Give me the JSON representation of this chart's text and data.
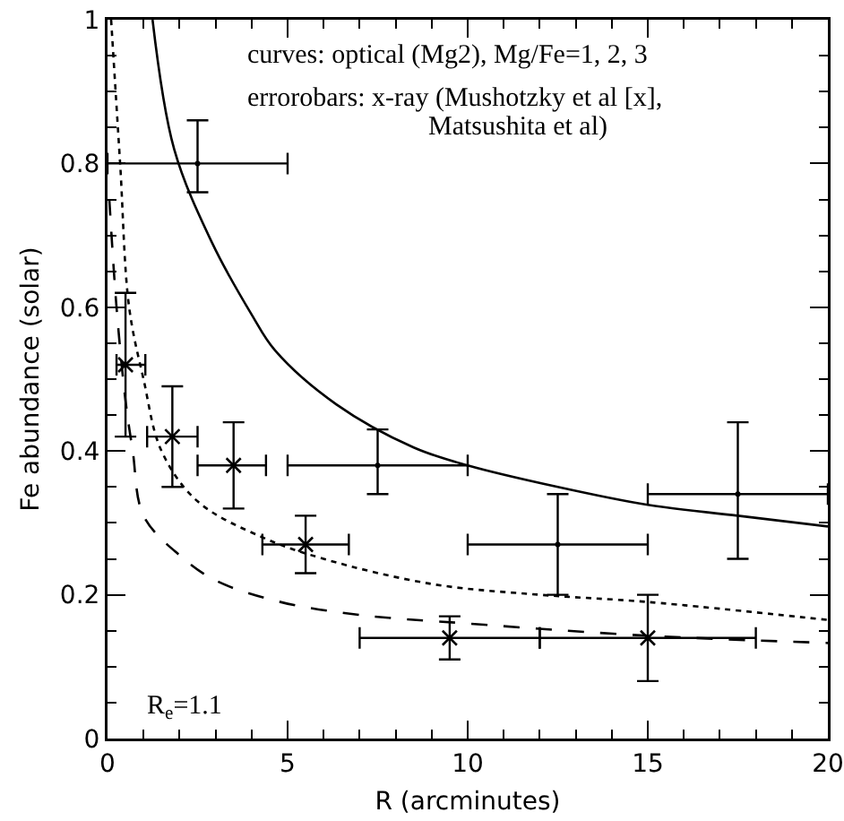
{
  "chart_data": {
    "type": "line",
    "xlabel": "R (arcminutes)",
    "ylabel": "Fe abundance (solar)",
    "xlim": [
      0,
      20
    ],
    "ylim": [
      0,
      1
    ],
    "xticks": [
      0,
      5,
      10,
      15,
      20
    ],
    "yticks": [
      0,
      0.2,
      0.4,
      0.6,
      0.8,
      1
    ],
    "annotations": [
      "curves: optical (Mg2), Mg/Fe=1, 2, 3",
      "errorobars: x-ray (Mushotzky et al [x],",
      "Matsushita et al)",
      "R$_{e}$=1.1"
    ],
    "series": [
      {
        "color": "#000000",
        "line_style": "solid",
        "marker": "none",
        "x": [
          1.25,
          1.85,
          2.9,
          4.0,
          4.65,
          6.35,
          8.5,
          10,
          12.5,
          15,
          17.5,
          20
        ],
        "values": [
          1,
          0.82,
          0.69,
          0.59,
          0.54,
          0.465,
          0.405,
          0.38,
          0.35,
          0.325,
          0.31,
          0.295
        ]
      },
      {
        "color": "#000000",
        "line_style": "dotted",
        "marker": "none",
        "x": [
          0.1,
          0.35,
          0.6,
          1,
          1.5,
          2.5,
          4.3,
          6,
          9,
          12,
          15,
          20
        ],
        "values": [
          1,
          0.8,
          0.6,
          0.5,
          0.4,
          0.33,
          0.28,
          0.25,
          0.215,
          0.2,
          0.19,
          0.165
        ]
      },
      {
        "color": "#000000",
        "line_style": "dashed",
        "marker": "none",
        "x": [
          0.05,
          0.25,
          0.5,
          0.7,
          1,
          2,
          3,
          4.8,
          7,
          10,
          15,
          20
        ],
        "values": [
          0.75,
          0.6,
          0.47,
          0.4,
          0.31,
          0.255,
          0.22,
          0.19,
          0.172,
          0.16,
          0.143,
          0.133
        ]
      },
      {
        "type": "scatter",
        "color": "#000000",
        "marker": "cross",
        "x": [
          0.5,
          1.8,
          3.5,
          5.5,
          9.5,
          15
        ],
        "values": [
          0.52,
          0.42,
          0.38,
          0.27,
          0.14,
          0.14
        ],
        "errors": [
          [
            0.42,
            0.62
          ],
          [
            0.35,
            0.49
          ],
          [
            0.32,
            0.44
          ],
          [
            0.23,
            0.31
          ],
          [
            0.11,
            0.17
          ],
          [
            0.08,
            0.2
          ]
        ],
        "xerrors": [
          [
            0.25,
            1.05
          ],
          [
            1.1,
            2.5
          ],
          [
            2.5,
            4.4
          ],
          [
            4.3,
            6.7
          ],
          [
            7,
            12
          ],
          [
            12,
            18
          ]
        ]
      },
      {
        "type": "scatter",
        "color": "#000000",
        "marker": "none",
        "x": [
          2.5,
          7.5,
          12.5,
          17.5
        ],
        "values": [
          0.8,
          0.38,
          0.27,
          0.34
        ],
        "errors": [
          [
            0.76,
            0.86
          ],
          [
            0.34,
            0.43
          ],
          [
            0.2,
            0.34
          ],
          [
            0.25,
            0.44
          ]
        ],
        "xerrors": [
          [
            0,
            5
          ],
          [
            5,
            10
          ],
          [
            10,
            15
          ],
          [
            15,
            20
          ]
        ]
      }
    ]
  }
}
